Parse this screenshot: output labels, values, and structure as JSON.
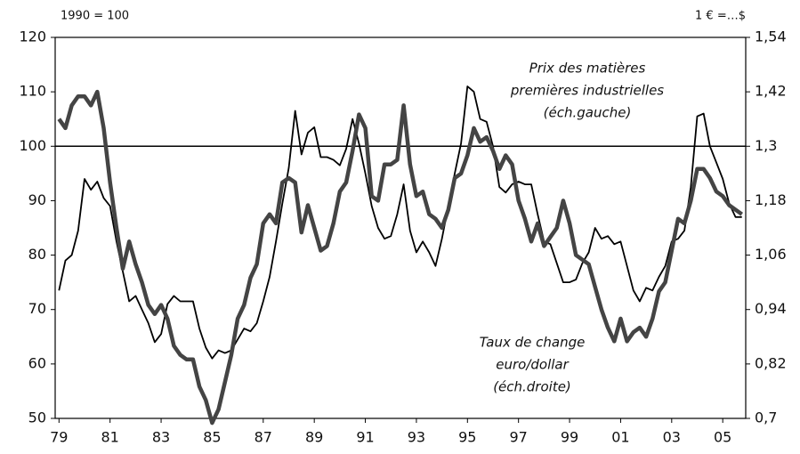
{
  "chart_data": {
    "type": "line",
    "left_unit": "1990 = 100",
    "right_unit": "1 € =…$",
    "x": [
      1979,
      1979.25,
      1979.5,
      1979.75,
      1980,
      1980.25,
      1980.5,
      1980.75,
      1981,
      1981.25,
      1981.5,
      1981.75,
      1982,
      1982.25,
      1982.5,
      1982.75,
      1983,
      1983.25,
      1983.5,
      1983.75,
      1984,
      1984.25,
      1984.5,
      1984.75,
      1985,
      1985.25,
      1985.5,
      1985.75,
      1986,
      1986.25,
      1986.5,
      1986.75,
      1987,
      1987.25,
      1987.5,
      1987.75,
      1988,
      1988.25,
      1988.5,
      1988.75,
      1989,
      1989.25,
      1989.5,
      1989.75,
      1990,
      1990.25,
      1990.5,
      1990.75,
      1991,
      1991.25,
      1991.5,
      1991.75,
      1992,
      1992.25,
      1992.5,
      1992.75,
      1993,
      1993.25,
      1993.5,
      1993.75,
      1994,
      1994.25,
      1994.5,
      1994.75,
      1995,
      1995.25,
      1995.5,
      1995.75,
      1996,
      1996.25,
      1996.5,
      1996.75,
      1997,
      1997.25,
      1997.5,
      1997.75,
      1998,
      1998.25,
      1998.5,
      1998.75,
      1999,
      1999.25,
      1999.5,
      1999.75,
      2000,
      2000.25,
      2000.5,
      2000.75,
      2001,
      2001.25,
      2001.5,
      2001.75,
      2002,
      2002.25,
      2002.5,
      2002.75,
      2003,
      2003.25,
      2003.5,
      2003.75,
      2004,
      2004.25,
      2004.5,
      2004.75,
      2005,
      2005.25,
      2005.5,
      2005.75
    ],
    "series": [
      {
        "color": "#000000",
        "axis": "y",
        "values": [
          73.5,
          79,
          80,
          84.5,
          94,
          92,
          93.5,
          90.5,
          89,
          82.5,
          77,
          71.5,
          72.5,
          70,
          67.5,
          64,
          65.5,
          71,
          72.5,
          71.5,
          71.5,
          71.5,
          66.5,
          63,
          61,
          62.5,
          62,
          62.5,
          64.5,
          66.5,
          66,
          67.5,
          71.5,
          76,
          82.5,
          89.5,
          96,
          106.5,
          98.5,
          102.5,
          103.5,
          98,
          98,
          97.5,
          96.5,
          99.5,
          105,
          100.5,
          95,
          89,
          85,
          83,
          83.5,
          87.5,
          93,
          84.5,
          80.5,
          82.5,
          80.5,
          78,
          83,
          89,
          95,
          100.5,
          111,
          110,
          105,
          104.5,
          100,
          92.5,
          91.5,
          93,
          93.5,
          93,
          93,
          87.5,
          82.5,
          82,
          78.5,
          75,
          75,
          75.5,
          78.5,
          80.5,
          85,
          83,
          83.5,
          82,
          82.5,
          78,
          73.5,
          71.5,
          74,
          73.5,
          76,
          78,
          82.5,
          83,
          84.5,
          92.5,
          105.5,
          106,
          100,
          97,
          94,
          89.5,
          87,
          87
        ]
      },
      {
        "color": "#444444",
        "axis": "y2",
        "values": [
          1.36,
          1.34,
          1.39,
          1.41,
          1.41,
          1.39,
          1.42,
          1.34,
          1.22,
          1.12,
          1.03,
          1.09,
          1.04,
          1.0,
          0.95,
          0.93,
          0.95,
          0.92,
          0.86,
          0.84,
          0.83,
          0.83,
          0.77,
          0.74,
          0.69,
          0.72,
          0.78,
          0.84,
          0.92,
          0.95,
          1.01,
          1.04,
          1.13,
          1.15,
          1.13,
          1.22,
          1.23,
          1.22,
          1.11,
          1.17,
          1.12,
          1.07,
          1.08,
          1.13,
          1.2,
          1.22,
          1.29,
          1.37,
          1.34,
          1.19,
          1.18,
          1.26,
          1.26,
          1.27,
          1.39,
          1.26,
          1.19,
          1.2,
          1.15,
          1.14,
          1.12,
          1.16,
          1.23,
          1.24,
          1.28,
          1.34,
          1.31,
          1.32,
          1.29,
          1.25,
          1.28,
          1.26,
          1.18,
          1.14,
          1.09,
          1.13,
          1.08,
          1.1,
          1.12,
          1.18,
          1.13,
          1.06,
          1.05,
          1.04,
          0.99,
          0.94,
          0.9,
          0.87,
          0.92,
          0.87,
          0.89,
          0.9,
          0.88,
          0.92,
          0.98,
          1.0,
          1.07,
          1.14,
          1.13,
          1.18,
          1.25,
          1.25,
          1.23,
          1.2,
          1.19,
          1.17,
          1.16,
          1.15
        ]
      }
    ],
    "annotations": [
      {
        "series": 0,
        "lines": [
          "Prix des matières",
          "premières industrielles",
          "(éch.gauche)"
        ]
      },
      {
        "series": 1,
        "lines": [
          "Taux de change",
          "euro/dollar",
          "(éch.droite)"
        ]
      }
    ],
    "reference_line": 100,
    "xlim": [
      1978.85,
      2005.9
    ],
    "xticks": [
      {
        "value": 1979,
        "label": "79"
      },
      {
        "value": 1981,
        "label": "81"
      },
      {
        "value": 1983,
        "label": "83"
      },
      {
        "value": 1985,
        "label": "85"
      },
      {
        "value": 1987,
        "label": "87"
      },
      {
        "value": 1989,
        "label": "89"
      },
      {
        "value": 1991,
        "label": "91"
      },
      {
        "value": 1993,
        "label": "93"
      },
      {
        "value": 1995,
        "label": "95"
      },
      {
        "value": 1997,
        "label": "97"
      },
      {
        "value": 1999,
        "label": "99"
      },
      {
        "value": 2001,
        "label": "01"
      },
      {
        "value": 2003,
        "label": "03"
      },
      {
        "value": 2005,
        "label": "05"
      }
    ],
    "ylim": [
      50,
      120
    ],
    "yticks": [
      50,
      60,
      70,
      80,
      90,
      100,
      110,
      120
    ],
    "y2lim": [
      0.7,
      1.54
    ],
    "y2ticks": [
      {
        "value": 0.7,
        "label": "0,7"
      },
      {
        "value": 0.82,
        "label": "0,82"
      },
      {
        "value": 0.94,
        "label": "0,94"
      },
      {
        "value": 1.06,
        "label": "1,06"
      },
      {
        "value": 1.18,
        "label": "1,18"
      },
      {
        "value": 1.3,
        "label": "1,3"
      },
      {
        "value": 1.42,
        "label": "1,42"
      },
      {
        "value": 1.54,
        "label": "1,54"
      }
    ]
  }
}
